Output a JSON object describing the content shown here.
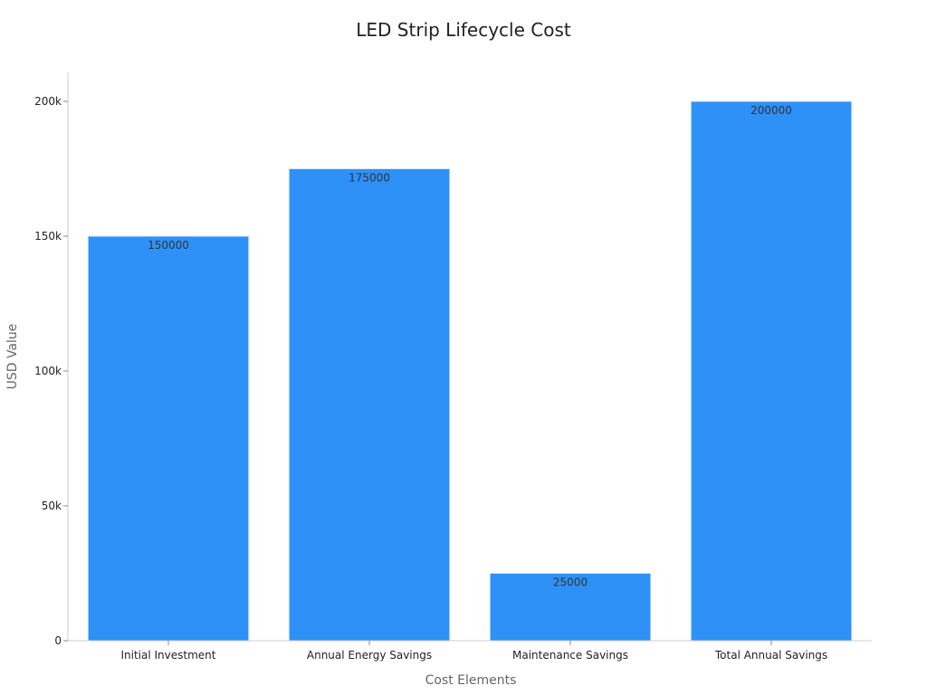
{
  "chart_data": {
    "type": "bar",
    "title": "LED Strip Lifecycle Cost",
    "xlabel": "Cost Elements",
    "ylabel": "USD Value",
    "categories": [
      "Initial Investment",
      "Annual Energy Savings",
      "Maintenance Savings",
      "Total Annual Savings"
    ],
    "values": [
      150000,
      175000,
      25000,
      200000
    ],
    "data_labels": [
      "150000",
      "175000",
      "25000",
      "200000"
    ],
    "ylim": [
      0,
      210000
    ],
    "yticks": [
      0,
      50000,
      100000,
      150000,
      200000
    ],
    "ytick_labels": [
      "0",
      "50k",
      "100k",
      "150k",
      "200k"
    ],
    "bar_color": "#2e91f8",
    "grid": false,
    "legend": "none"
  }
}
